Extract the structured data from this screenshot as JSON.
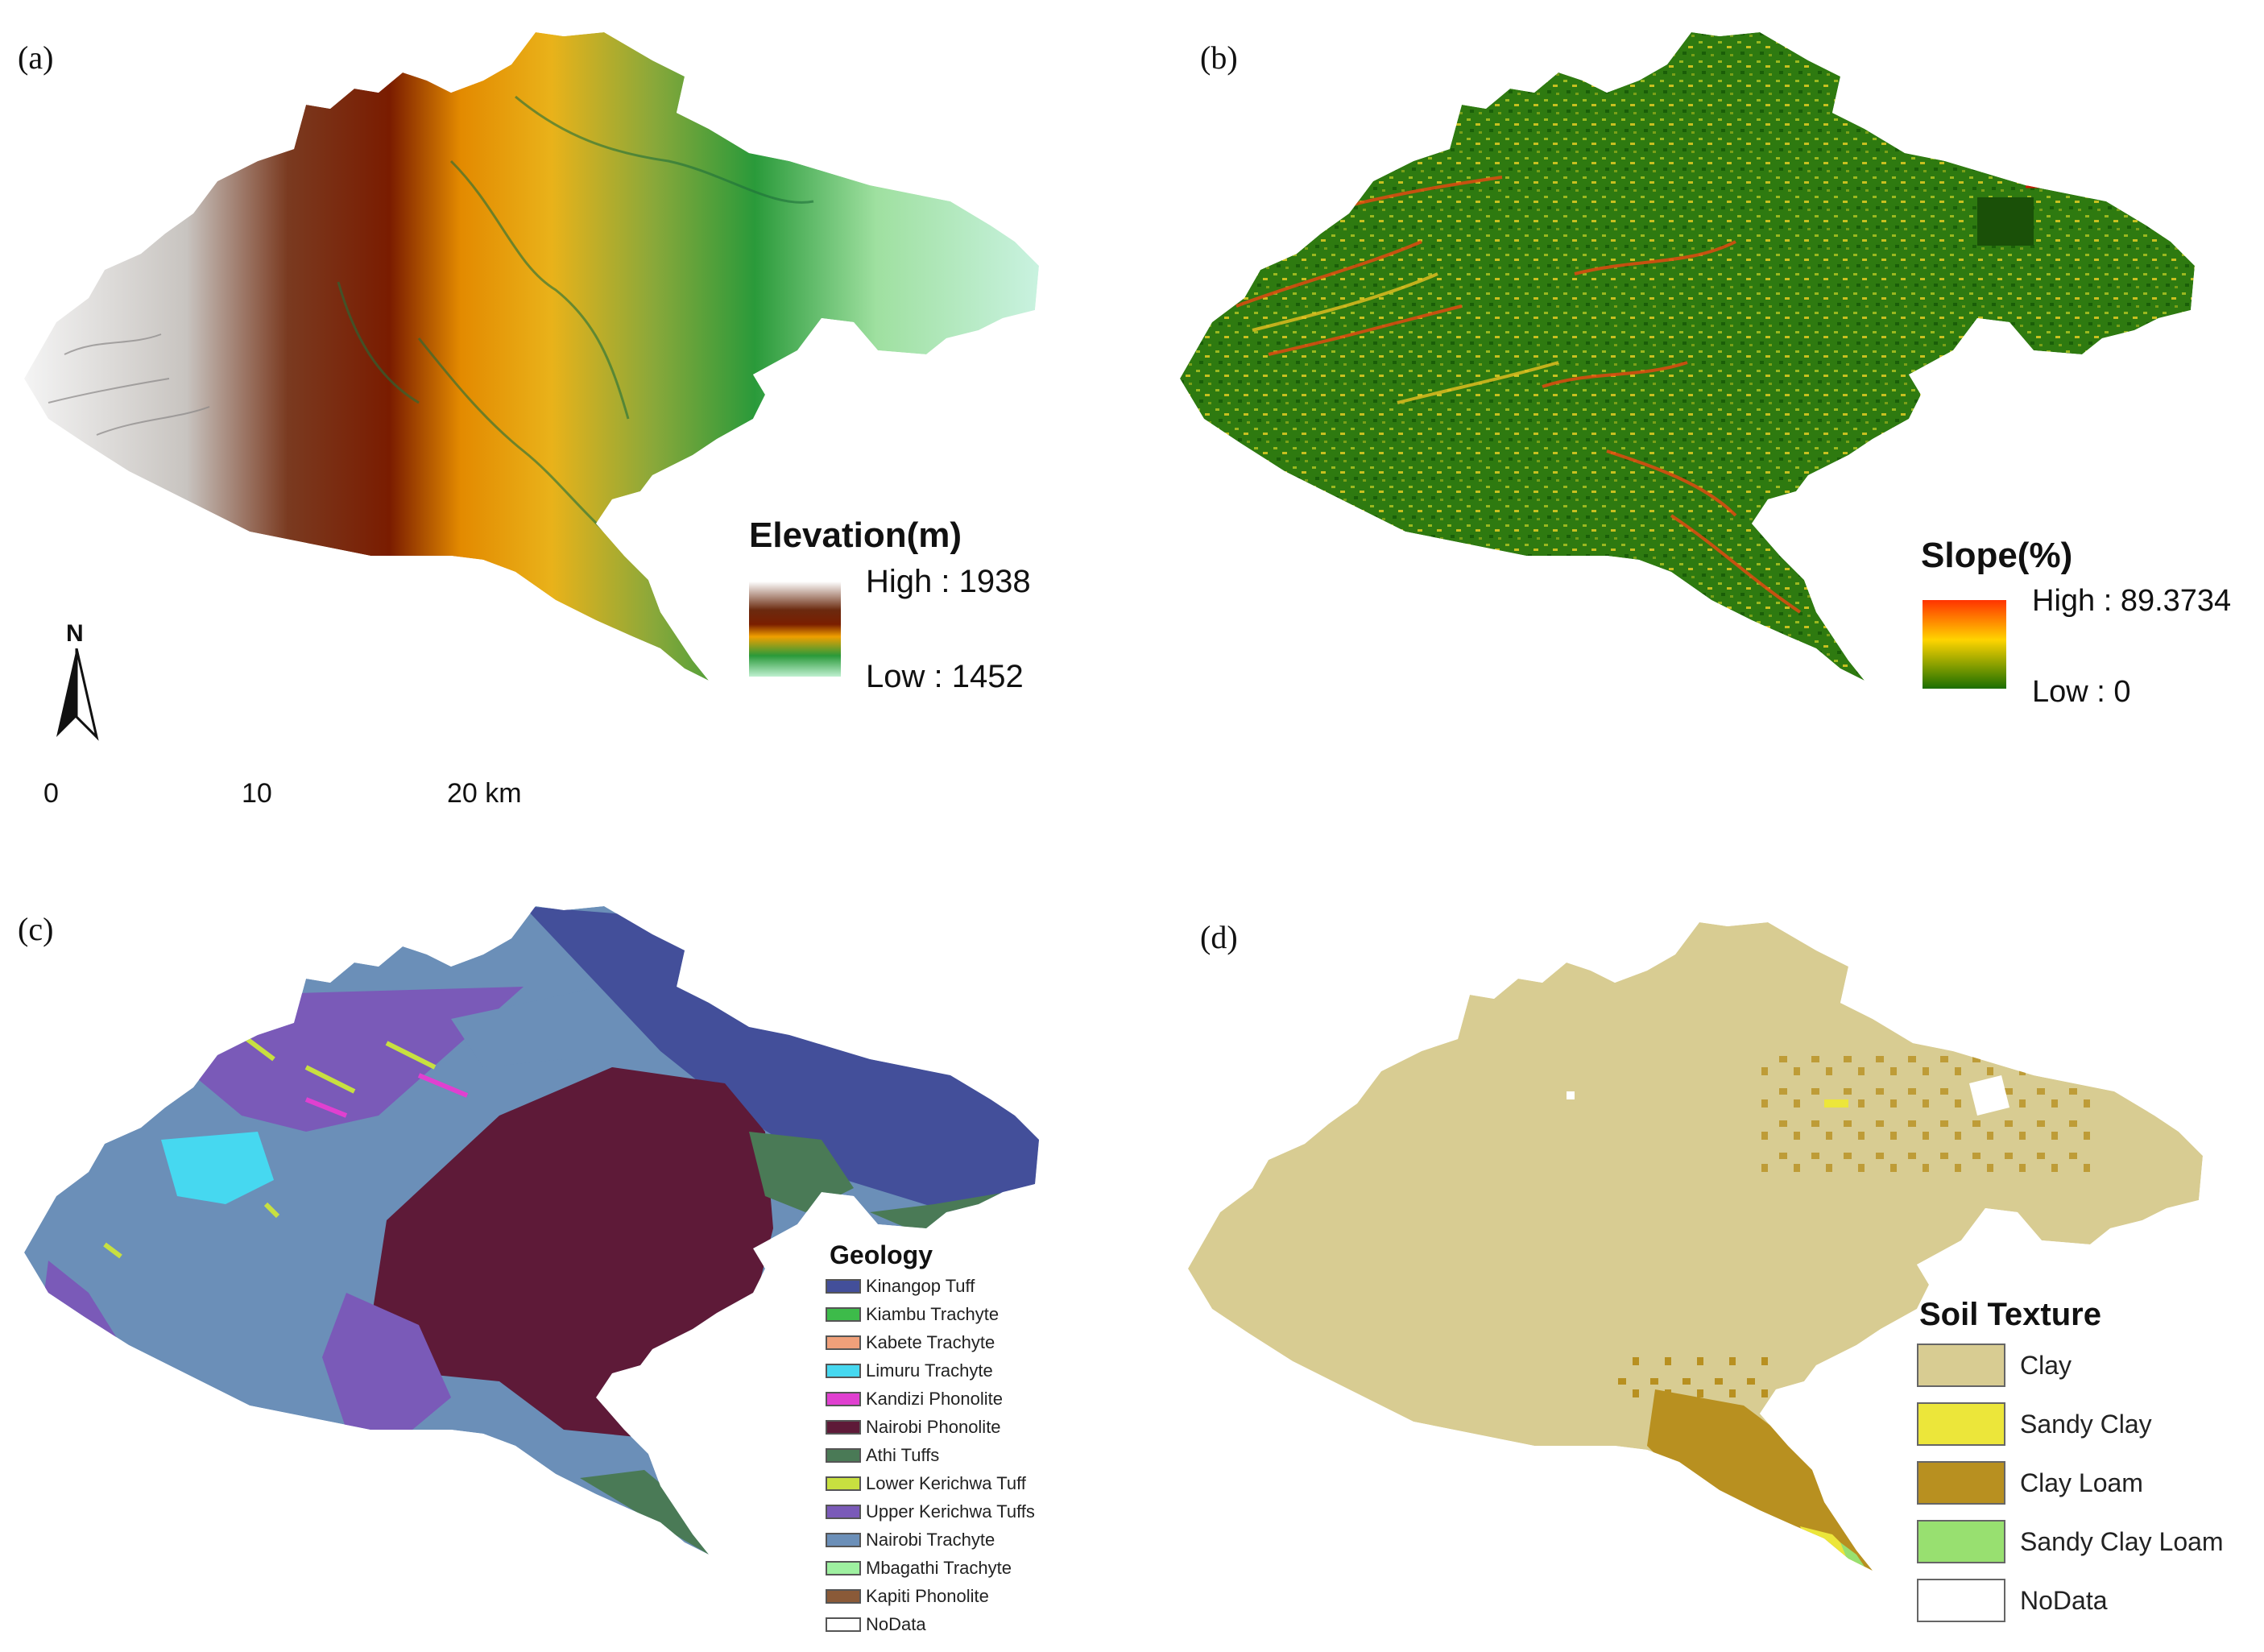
{
  "panels": {
    "a": {
      "label": "(a)",
      "legend_title": "Elevation(m)",
      "high_label": "High : 1938",
      "low_label": "Low : 1452",
      "colors": [
        "#ffffff",
        "#6b2a0f",
        "#7a1e00",
        "#f0a000",
        "#2a9a3a",
        "#bff0d0"
      ]
    },
    "b": {
      "label": "(b)",
      "legend_title": "Slope(%)",
      "high_label": "High : 89.3734",
      "low_label": "Low : 0",
      "colors": [
        "#ff3300",
        "#ffd400",
        "#1a6e00"
      ]
    },
    "c": {
      "label": "(c)",
      "legend_title": "Geology",
      "items": [
        {
          "label": "Kinangop Tuff",
          "color": "#434f9a"
        },
        {
          "label": "Kiambu Trachyte",
          "color": "#3dbb4a"
        },
        {
          "label": "Kabete Trachyte",
          "color": "#f0a07a"
        },
        {
          "label": "Limuru Trachyte",
          "color": "#46d8f0"
        },
        {
          "label": "Kandizi Phonolite",
          "color": "#e040d0"
        },
        {
          "label": "Nairobi Phonolite",
          "color": "#5e1a38"
        },
        {
          "label": "Athi Tuffs",
          "color": "#4a7a56"
        },
        {
          "label": "Lower Kerichwa Tuff",
          "color": "#c8e040"
        },
        {
          "label": "Upper Kerichwa Tuffs",
          "color": "#7a5ab8"
        },
        {
          "label": "Nairobi Trachyte",
          "color": "#6b8fb8"
        },
        {
          "label": "Mbagathi Trachyte",
          "color": "#9ef0a0"
        },
        {
          "label": "Kapiti Phonolite",
          "color": "#8a5a38"
        },
        {
          "label": "NoData",
          "color": "#ffffff"
        }
      ]
    },
    "d": {
      "label": "(d)",
      "legend_title": "Soil Texture",
      "items": [
        {
          "label": "Clay",
          "color": "#d8cc92"
        },
        {
          "label": "Sandy Clay",
          "color": "#ece63a"
        },
        {
          "label": "Clay Loam",
          "color": "#b89020"
        },
        {
          "label": "Sandy Clay Loam",
          "color": "#98e070"
        },
        {
          "label": "NoData",
          "color": "#ffffff"
        }
      ]
    }
  },
  "north_arrow": {
    "label": "N"
  },
  "scale_bar": {
    "tick_0": "0",
    "tick_10": "10",
    "tick_20": "20 km"
  }
}
